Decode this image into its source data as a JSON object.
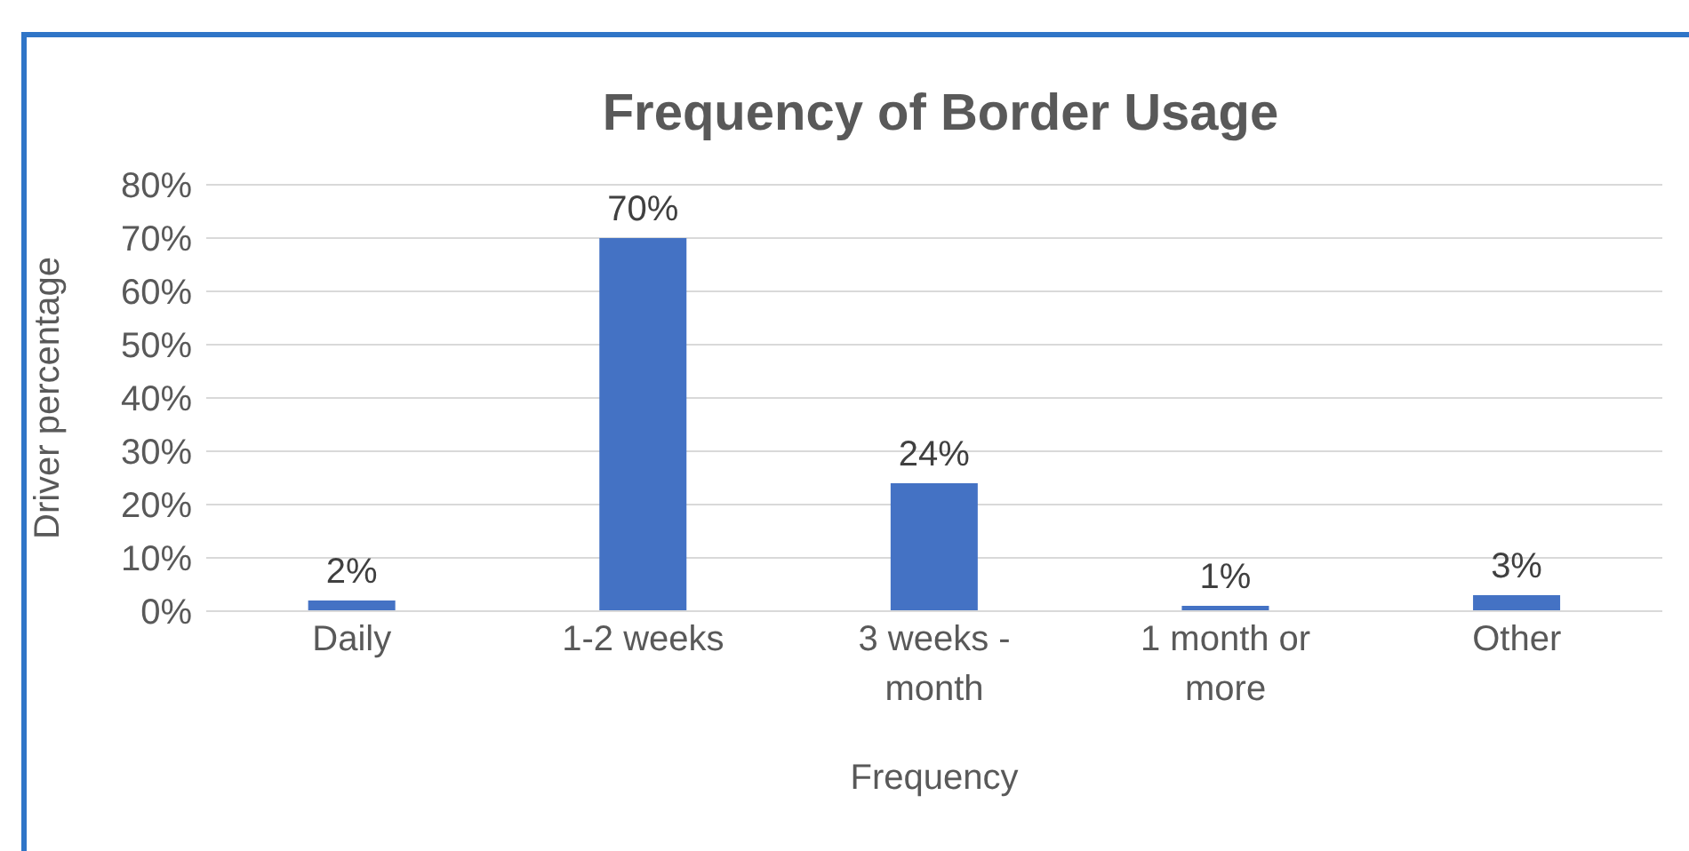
{
  "chart_data": {
    "type": "bar",
    "title": "Frequency of Border Usage",
    "xlabel": "Frequency",
    "ylabel": "Driver percentage",
    "categories": [
      "Daily",
      "1-2 weeks",
      "3 weeks - month",
      "1 month or more",
      "Other"
    ],
    "values": [
      2,
      70,
      24,
      1,
      3
    ],
    "value_labels": [
      "2%",
      "70%",
      "24%",
      "1%",
      "3%"
    ],
    "color": "#4472c4",
    "ylim": [
      0,
      80
    ],
    "yticks": [
      {
        "value": 0,
        "label": "0%"
      },
      {
        "value": 10,
        "label": "10%"
      },
      {
        "value": 20,
        "label": "20%"
      },
      {
        "value": 30,
        "label": "30%"
      },
      {
        "value": 40,
        "label": "40%"
      },
      {
        "value": 50,
        "label": "50%"
      },
      {
        "value": 60,
        "label": "60%"
      },
      {
        "value": 70,
        "label": "70%"
      },
      {
        "value": 80,
        "label": "80%"
      }
    ],
    "grid": "y",
    "legend": false
  }
}
